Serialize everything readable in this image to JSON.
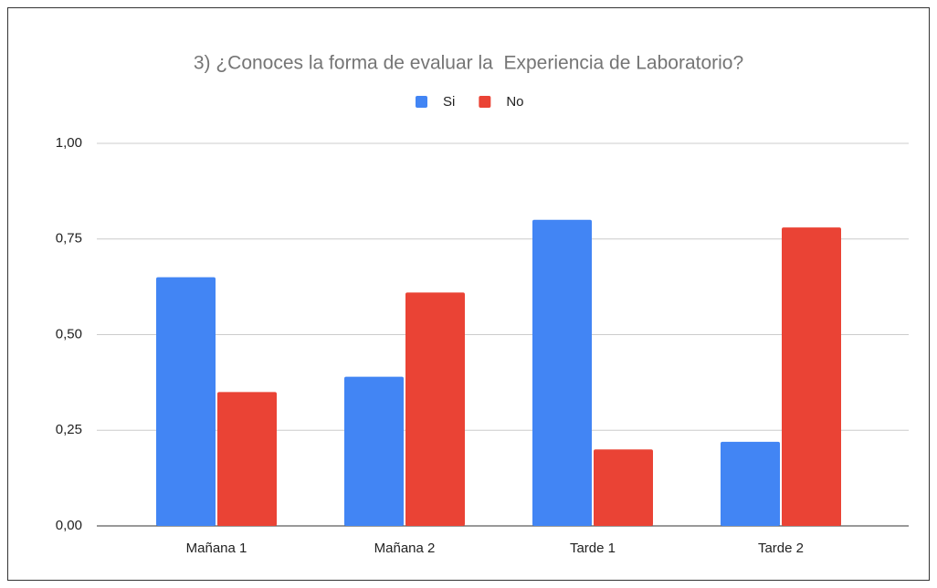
{
  "chart_data": {
    "type": "bar",
    "title": "3) ¿Conoces la forma de evaluar la  Experiencia de Laboratorio?",
    "categories": [
      "Mañana 1",
      "Mañana 2",
      "Tarde 1",
      "Tarde 2"
    ],
    "series": [
      {
        "name": "Si",
        "color": "#4285f4",
        "values": [
          0.65,
          0.39,
          0.8,
          0.22
        ]
      },
      {
        "name": "No",
        "color": "#ea4335",
        "values": [
          0.35,
          0.61,
          0.2,
          0.78
        ]
      }
    ],
    "ylim": [
      0,
      1
    ],
    "yticks": [
      {
        "value": 0,
        "label": "0,00"
      },
      {
        "value": 0.25,
        "label": "0,25"
      },
      {
        "value": 0.5,
        "label": "0,50"
      },
      {
        "value": 0.75,
        "label": "0,75"
      },
      {
        "value": 1,
        "label": "1,00"
      }
    ],
    "grid": true,
    "legend": "top"
  }
}
